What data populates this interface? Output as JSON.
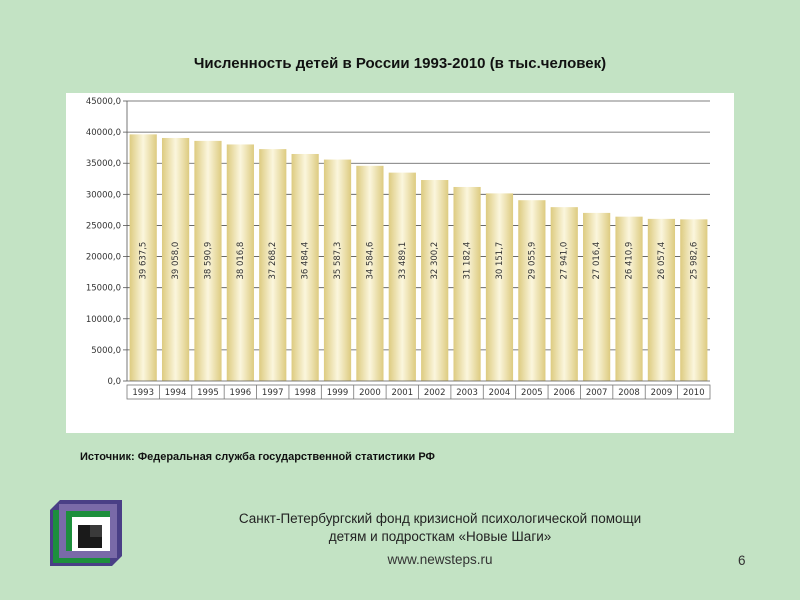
{
  "title": "Численность детей в России 1993-2010 (в тыс.человек)",
  "source": "Источник: Федеральная служба государственной статистики РФ",
  "footer": {
    "org_line1": "Санкт-Петербургский фонд кризисной психологической помощи",
    "org_line2": "детям и подросткам «Новые Шаги»",
    "website": "www.newsteps.ru",
    "page_number": "6"
  },
  "colors": {
    "background": "#c3e3c4",
    "bar_edge": "#ddcb80",
    "bar_center": "#fbf6dd",
    "gridline": "#555555",
    "logo_green": "#1d8f3c",
    "logo_purple": "#7a6aa8"
  },
  "chart_data": {
    "type": "bar",
    "title": "Численность детей в России 1993-2010 (в тыс.человек)",
    "categories": [
      "1993",
      "1994",
      "1995",
      "1996",
      "1997",
      "1998",
      "1999",
      "2000",
      "2001",
      "2002",
      "2003",
      "2004",
      "2005",
      "2006",
      "2007",
      "2008",
      "2009",
      "2010"
    ],
    "values": [
      39637.5,
      39058.0,
      38590.9,
      38016.8,
      37268.2,
      36484.4,
      35587.3,
      34584.6,
      33489.1,
      32300.2,
      31182.4,
      30151.7,
      29055.9,
      27941.0,
      27016.4,
      26410.9,
      26057.4,
      25982.6
    ],
    "data_labels": [
      "39 637,5",
      "39 058,0",
      "38 590,9",
      "38 016,8",
      "37 268,2",
      "36 484,4",
      "35 587,3",
      "34 584,6",
      "33 489,1",
      "32 300,2",
      "31 182,4",
      "30 151,7",
      "29 055,9",
      "27 941,0",
      "27 016,4",
      "26 410,9",
      "26 057,4",
      "25 982,6"
    ],
    "y_ticks": [
      "0,0",
      "5000,0",
      "10000,0",
      "15000,0",
      "20000,0",
      "25000,0",
      "30000,0",
      "35000,0",
      "40000,0",
      "45000,0"
    ],
    "ylim": [
      0,
      45000
    ],
    "grid": true,
    "legend": "none",
    "xlabel": "",
    "ylabel": ""
  }
}
